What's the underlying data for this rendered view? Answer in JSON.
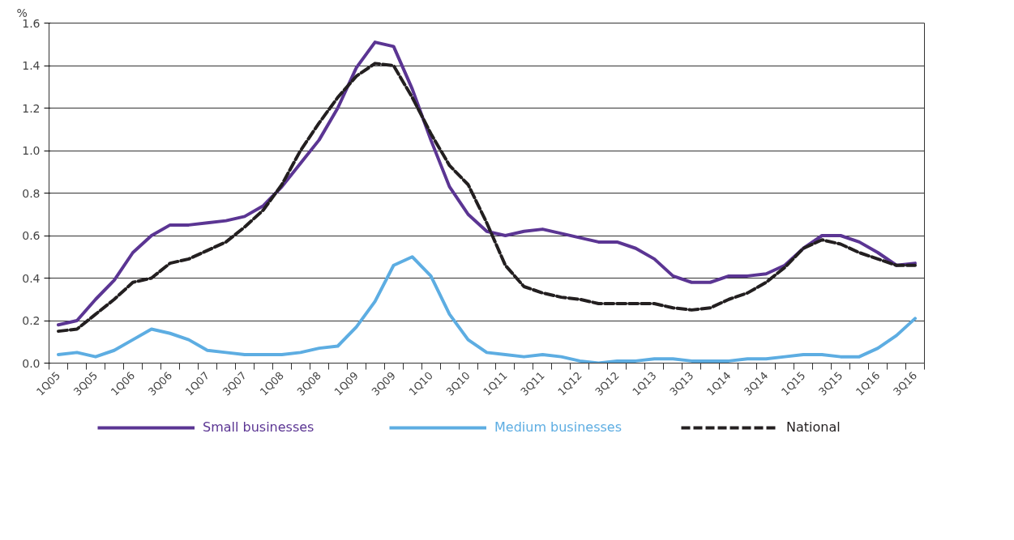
{
  "chart_data": {
    "type": "line",
    "ylabel": "%",
    "categories": [
      "1Q05",
      null,
      "3Q05",
      null,
      "1Q06",
      null,
      "3Q06",
      null,
      "1Q07",
      null,
      "3Q07",
      null,
      "1Q08",
      null,
      "3Q08",
      null,
      "1Q09",
      null,
      "3Q09",
      null,
      "1Q10",
      null,
      "3Q10",
      null,
      "1Q11",
      null,
      "3Q11",
      null,
      "1Q12",
      null,
      "3Q12",
      null,
      "1Q13",
      null,
      "3Q13",
      null,
      "1Q14",
      null,
      "3Q14",
      null,
      "1Q15",
      null,
      "3Q15",
      null,
      "1Q16",
      null,
      "3Q16"
    ],
    "series": [
      {
        "name": "Small businesses",
        "color": "#5b3593",
        "line_style": "solid",
        "values": [
          0.18,
          0.2,
          0.3,
          0.39,
          0.52,
          0.6,
          0.65,
          0.65,
          0.66,
          0.67,
          0.69,
          0.74,
          0.83,
          0.94,
          1.05,
          1.2,
          1.39,
          1.51,
          1.49,
          1.29,
          1.05,
          0.83,
          0.7,
          0.62,
          0.6,
          0.62,
          0.63,
          0.61,
          0.59,
          0.57,
          0.57,
          0.54,
          0.49,
          0.41,
          0.38,
          0.38,
          0.41,
          0.41,
          0.42,
          0.46,
          0.54,
          0.6,
          0.6,
          0.57,
          0.52,
          0.46,
          0.47
        ]
      },
      {
        "name": "Medium businesses",
        "color": "#5dade2",
        "line_style": "solid",
        "values": [
          0.04,
          0.05,
          0.03,
          0.06,
          0.11,
          0.16,
          0.14,
          0.11,
          0.06,
          0.05,
          0.04,
          0.04,
          0.04,
          0.05,
          0.07,
          0.08,
          0.17,
          0.29,
          0.46,
          0.5,
          0.41,
          0.23,
          0.11,
          0.05,
          0.04,
          0.03,
          0.04,
          0.03,
          0.01,
          0.0,
          0.01,
          0.01,
          0.02,
          0.02,
          0.01,
          0.01,
          0.01,
          0.02,
          0.02,
          0.03,
          0.04,
          0.04,
          0.03,
          0.03,
          0.07,
          0.13,
          0.21
        ]
      },
      {
        "name": "National",
        "color": "#231f20",
        "line_style": "dashed",
        "values": [
          0.15,
          0.16,
          0.23,
          0.3,
          0.38,
          0.4,
          0.47,
          0.49,
          0.53,
          0.57,
          0.64,
          0.72,
          0.84,
          1.0,
          1.13,
          1.25,
          1.35,
          1.41,
          1.4,
          1.25,
          1.08,
          0.93,
          0.84,
          0.66,
          0.46,
          0.36,
          0.33,
          0.31,
          0.3,
          0.28,
          0.28,
          0.28,
          0.28,
          0.26,
          0.25,
          0.26,
          0.3,
          0.33,
          0.38,
          0.45,
          0.54,
          0.58,
          0.56,
          0.52,
          0.49,
          0.46,
          0.46
        ]
      }
    ],
    "ylim": [
      0,
      1.6
    ],
    "yticks": [
      {
        "value": 0,
        "label": "0.0"
      },
      {
        "value": 0.2,
        "label": "0.2"
      },
      {
        "value": 0.4,
        "label": "0.4"
      },
      {
        "value": 0.6,
        "label": "0.6"
      },
      {
        "value": 0.8,
        "label": "0.8"
      },
      {
        "value": 1.0,
        "label": "1.0"
      },
      {
        "value": 1.2,
        "label": "1.2"
      },
      {
        "value": 1.4,
        "label": "1.4"
      },
      {
        "value": 1.6,
        "label": "1.6"
      }
    ],
    "grid": "y",
    "legend": "bottom",
    "marker": "none"
  }
}
